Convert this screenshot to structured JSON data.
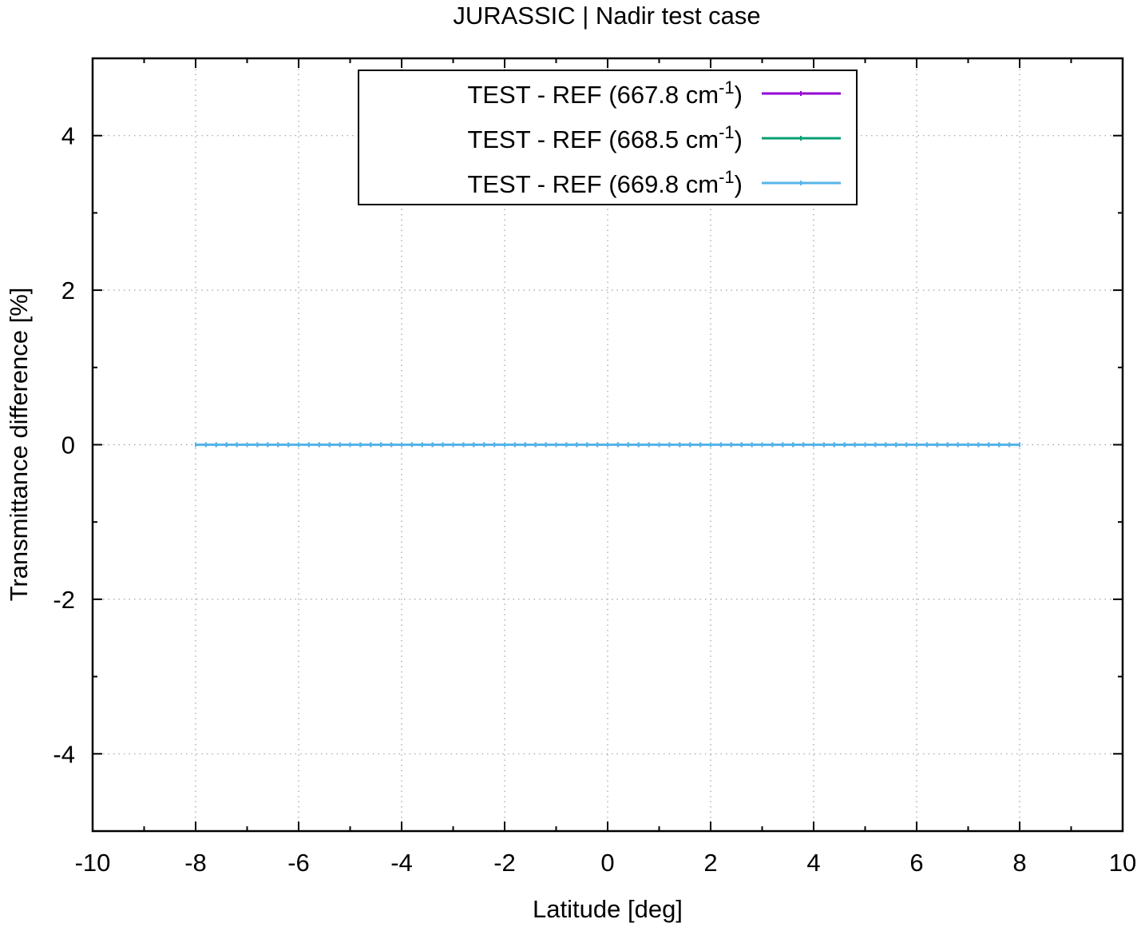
{
  "chart_data": {
    "type": "line",
    "title": "JURASSIC | Nadir test case",
    "xlabel": "Latitude [deg]",
    "ylabel": "Transmittance difference [%]",
    "xlim": [
      -10,
      10
    ],
    "ylim": [
      -5,
      5
    ],
    "x_ticks": [
      -10,
      -8,
      -6,
      -4,
      -2,
      0,
      2,
      4,
      6,
      8,
      10
    ],
    "x_tick_labels": [
      "-10",
      "-8",
      "-6",
      "-4",
      "-2",
      "0",
      "2",
      "4",
      "6",
      "8",
      "10"
    ],
    "y_ticks": [
      -4,
      -2,
      0,
      2,
      4
    ],
    "y_tick_labels": [
      "-4",
      "-2",
      "0",
      "2",
      "4"
    ],
    "x_minor_step": 1,
    "y_minor_step": 1,
    "grid": true,
    "legend_position": "top-center",
    "x": [
      -8.0,
      -7.8,
      -7.6,
      -7.4,
      -7.2,
      -7.0,
      -6.8,
      -6.6,
      -6.4,
      -6.2,
      -6.0,
      -5.8,
      -5.6,
      -5.4,
      -5.2,
      -5.0,
      -4.8,
      -4.6,
      -4.4,
      -4.2,
      -4.0,
      -3.8,
      -3.6,
      -3.4,
      -3.2,
      -3.0,
      -2.8,
      -2.6,
      -2.4,
      -2.2,
      -2.0,
      -1.8,
      -1.6,
      -1.4,
      -1.2,
      -1.0,
      -0.8,
      -0.6,
      -0.4,
      -0.2,
      0.0,
      0.2,
      0.4,
      0.6,
      0.8,
      1.0,
      1.2,
      1.4,
      1.6,
      1.8,
      2.0,
      2.2,
      2.4,
      2.6,
      2.8,
      3.0,
      3.2,
      3.4,
      3.6,
      3.8,
      4.0,
      4.2,
      4.4,
      4.6,
      4.8,
      5.0,
      5.2,
      5.4,
      5.6,
      5.8,
      6.0,
      6.2,
      6.4,
      6.6,
      6.8,
      7.0,
      7.2,
      7.4,
      7.6,
      7.8,
      8.0
    ],
    "series": [
      {
        "name": "TEST - REF (667.8 cm",
        "name_sup": "-1",
        "name_end": ")",
        "color": "#9400d3",
        "y_constant": 0
      },
      {
        "name": "TEST - REF (668.5 cm",
        "name_sup": "-1",
        "name_end": ")",
        "color": "#009e73",
        "y_constant": 0
      },
      {
        "name": "TEST - REF (669.8 cm",
        "name_sup": "-1",
        "name_end": ")",
        "color": "#56b4e9",
        "y_constant": 0
      }
    ]
  }
}
